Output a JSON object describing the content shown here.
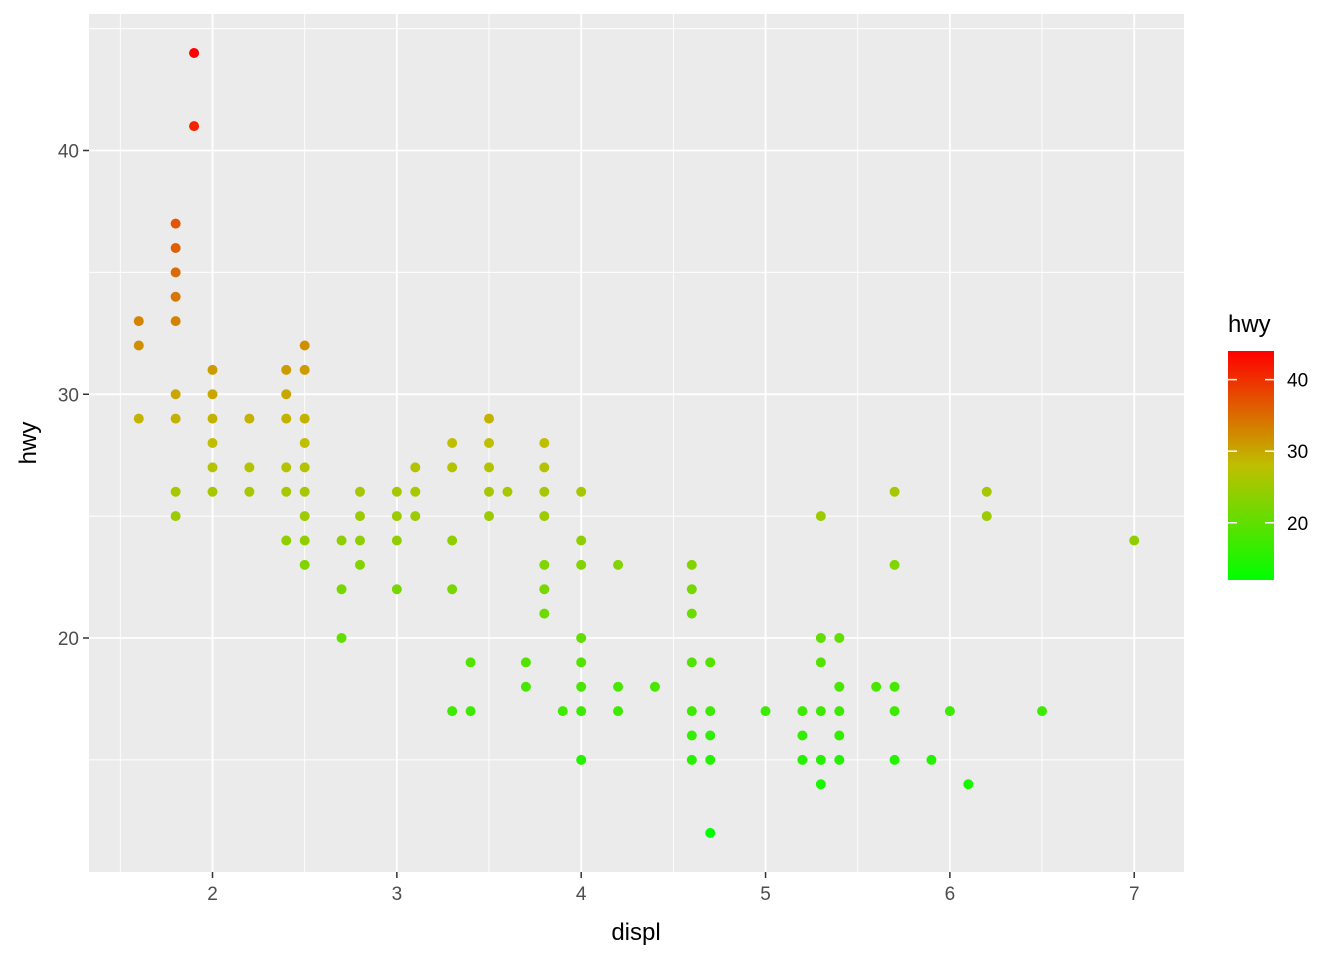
{
  "chart_data": {
    "type": "scatter",
    "xlabel": "displ",
    "ylabel": "hwy",
    "xlim": [
      1.33,
      7.27
    ],
    "ylim": [
      10.4,
      45.6
    ],
    "x_ticks": [
      2,
      3,
      4,
      5,
      6,
      7
    ],
    "y_ticks": [
      20,
      30,
      40
    ],
    "grid": true,
    "legend": {
      "title": "hwy",
      "placement": "right",
      "type": "colorbar",
      "range": [
        12,
        44
      ],
      "ticks": [
        20,
        30,
        40
      ],
      "low_color": "#00ff00",
      "high_color": "#ff0000"
    },
    "panel_background": "#ebebeb",
    "points": [
      [
        1.6,
        33
      ],
      [
        1.6,
        32
      ],
      [
        1.6,
        29
      ],
      [
        1.8,
        37
      ],
      [
        1.8,
        36
      ],
      [
        1.8,
        35
      ],
      [
        1.8,
        34
      ],
      [
        1.8,
        33
      ],
      [
        1.8,
        30
      ],
      [
        1.8,
        29
      ],
      [
        1.8,
        26
      ],
      [
        1.8,
        25
      ],
      [
        1.9,
        44
      ],
      [
        1.9,
        41
      ],
      [
        2.0,
        31
      ],
      [
        2.0,
        30
      ],
      [
        2.0,
        29
      ],
      [
        2.0,
        28
      ],
      [
        2.0,
        27
      ],
      [
        2.0,
        26
      ],
      [
        2.2,
        29
      ],
      [
        2.2,
        27
      ],
      [
        2.2,
        26
      ],
      [
        2.4,
        31
      ],
      [
        2.4,
        30
      ],
      [
        2.4,
        29
      ],
      [
        2.4,
        27
      ],
      [
        2.4,
        26
      ],
      [
        2.4,
        24
      ],
      [
        2.5,
        32
      ],
      [
        2.5,
        31
      ],
      [
        2.5,
        29
      ],
      [
        2.5,
        28
      ],
      [
        2.5,
        27
      ],
      [
        2.5,
        26
      ],
      [
        2.5,
        25
      ],
      [
        2.5,
        24
      ],
      [
        2.5,
        23
      ],
      [
        2.7,
        24
      ],
      [
        2.7,
        22
      ],
      [
        2.7,
        20
      ],
      [
        2.8,
        26
      ],
      [
        2.8,
        25
      ],
      [
        2.8,
        24
      ],
      [
        2.8,
        23
      ],
      [
        3.0,
        26
      ],
      [
        3.0,
        25
      ],
      [
        3.0,
        24
      ],
      [
        3.0,
        22
      ],
      [
        3.1,
        27
      ],
      [
        3.1,
        26
      ],
      [
        3.1,
        25
      ],
      [
        3.3,
        28
      ],
      [
        3.3,
        27
      ],
      [
        3.3,
        24
      ],
      [
        3.3,
        22
      ],
      [
        3.3,
        17
      ],
      [
        3.4,
        19
      ],
      [
        3.4,
        17
      ],
      [
        3.5,
        29
      ],
      [
        3.5,
        28
      ],
      [
        3.5,
        27
      ],
      [
        3.5,
        26
      ],
      [
        3.5,
        25
      ],
      [
        3.6,
        26
      ],
      [
        3.7,
        19
      ],
      [
        3.7,
        18
      ],
      [
        3.8,
        28
      ],
      [
        3.8,
        27
      ],
      [
        3.8,
        26
      ],
      [
        3.8,
        25
      ],
      [
        3.8,
        23
      ],
      [
        3.8,
        22
      ],
      [
        3.8,
        21
      ],
      [
        3.9,
        17
      ],
      [
        4.0,
        26
      ],
      [
        4.0,
        24
      ],
      [
        4.0,
        23
      ],
      [
        4.0,
        20
      ],
      [
        4.0,
        19
      ],
      [
        4.0,
        18
      ],
      [
        4.0,
        17
      ],
      [
        4.0,
        15
      ],
      [
        4.2,
        23
      ],
      [
        4.2,
        18
      ],
      [
        4.2,
        17
      ],
      [
        4.4,
        18
      ],
      [
        4.6,
        23
      ],
      [
        4.6,
        22
      ],
      [
        4.6,
        21
      ],
      [
        4.6,
        19
      ],
      [
        4.6,
        17
      ],
      [
        4.6,
        16
      ],
      [
        4.6,
        15
      ],
      [
        4.7,
        19
      ],
      [
        4.7,
        17
      ],
      [
        4.7,
        16
      ],
      [
        4.7,
        15
      ],
      [
        4.7,
        12
      ],
      [
        5.0,
        17
      ],
      [
        5.2,
        17
      ],
      [
        5.2,
        16
      ],
      [
        5.2,
        15
      ],
      [
        5.3,
        25
      ],
      [
        5.3,
        20
      ],
      [
        5.3,
        19
      ],
      [
        5.3,
        17
      ],
      [
        5.3,
        15
      ],
      [
        5.3,
        14
      ],
      [
        5.4,
        20
      ],
      [
        5.4,
        18
      ],
      [
        5.4,
        17
      ],
      [
        5.4,
        16
      ],
      [
        5.4,
        15
      ],
      [
        5.6,
        18
      ],
      [
        5.7,
        26
      ],
      [
        5.7,
        23
      ],
      [
        5.7,
        18
      ],
      [
        5.7,
        17
      ],
      [
        5.7,
        15
      ],
      [
        5.9,
        15
      ],
      [
        6.0,
        17
      ],
      [
        6.1,
        14
      ],
      [
        6.2,
        26
      ],
      [
        6.2,
        25
      ],
      [
        6.5,
        17
      ],
      [
        7.0,
        24
      ]
    ]
  }
}
